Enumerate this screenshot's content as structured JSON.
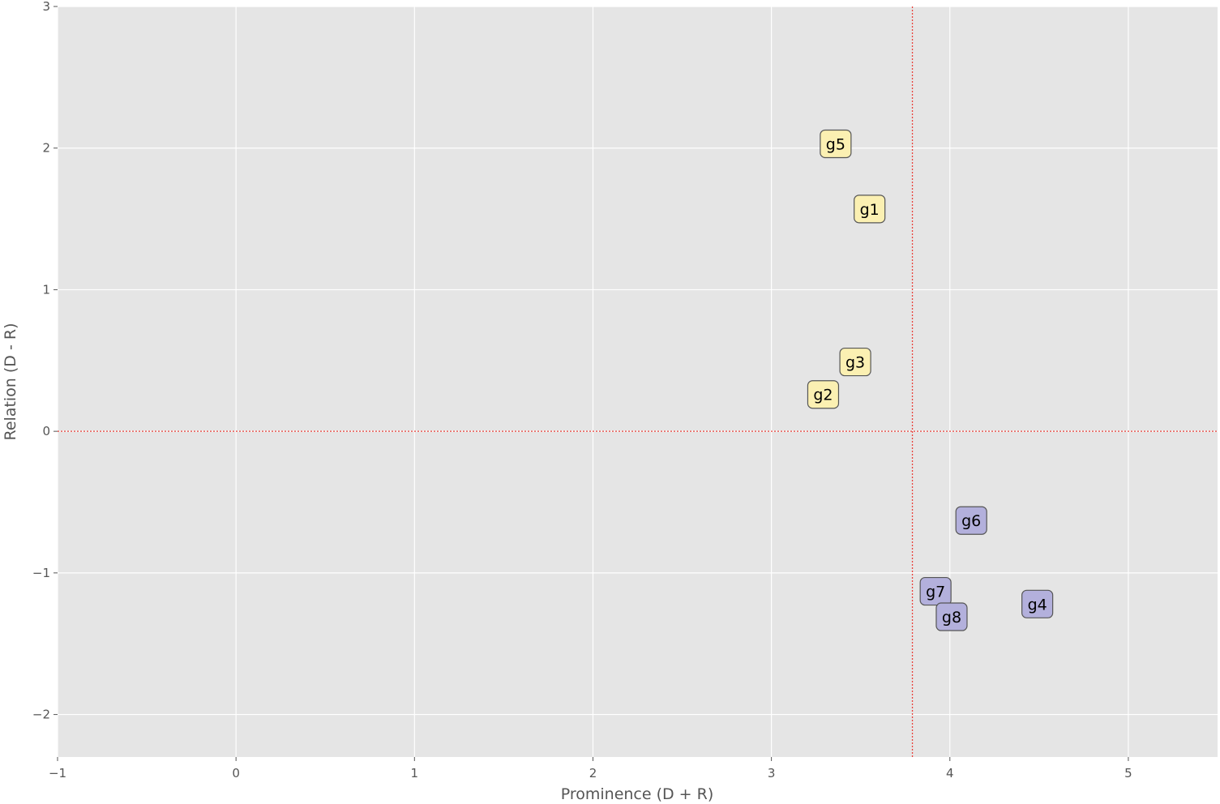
{
  "chart_data": {
    "type": "scatter",
    "title": "",
    "xlabel": "Prominence (D + R)",
    "ylabel": "Relation (D - R)",
    "xlim": [
      -1,
      5.5
    ],
    "ylim": [
      -2.3,
      3
    ],
    "xticks": [
      -1,
      0,
      1,
      2,
      3,
      4,
      5
    ],
    "yticks": [
      -2,
      -1,
      0,
      1,
      2,
      3
    ],
    "xtick_labels": [
      "−1",
      "0",
      "1",
      "2",
      "3",
      "4",
      "5"
    ],
    "ytick_labels": [
      "−2",
      "−1",
      "0",
      "1",
      "2",
      "3"
    ],
    "grid": true,
    "reference_lines": {
      "x": 3.79,
      "y": 0
    },
    "colors": {
      "background": "#e5e5e5",
      "grid": "#ffffff",
      "reference": "#e8413a",
      "cause_box": "#fbf0b2",
      "effect_box": "#b3b0dc",
      "box_border": "#555555"
    },
    "points": [
      {
        "label": "g1",
        "x": 3.55,
        "y": 1.57,
        "group": "cause"
      },
      {
        "label": "g2",
        "x": 3.29,
        "y": 0.26,
        "group": "cause"
      },
      {
        "label": "g3",
        "x": 3.47,
        "y": 0.49,
        "group": "cause"
      },
      {
        "label": "g4",
        "x": 4.49,
        "y": -1.22,
        "group": "effect"
      },
      {
        "label": "g5",
        "x": 3.36,
        "y": 2.03,
        "group": "cause"
      },
      {
        "label": "g6",
        "x": 4.12,
        "y": -0.63,
        "group": "effect"
      },
      {
        "label": "g7",
        "x": 3.92,
        "y": -1.13,
        "group": "effect"
      },
      {
        "label": "g8",
        "x": 4.01,
        "y": -1.31,
        "group": "effect"
      }
    ]
  }
}
